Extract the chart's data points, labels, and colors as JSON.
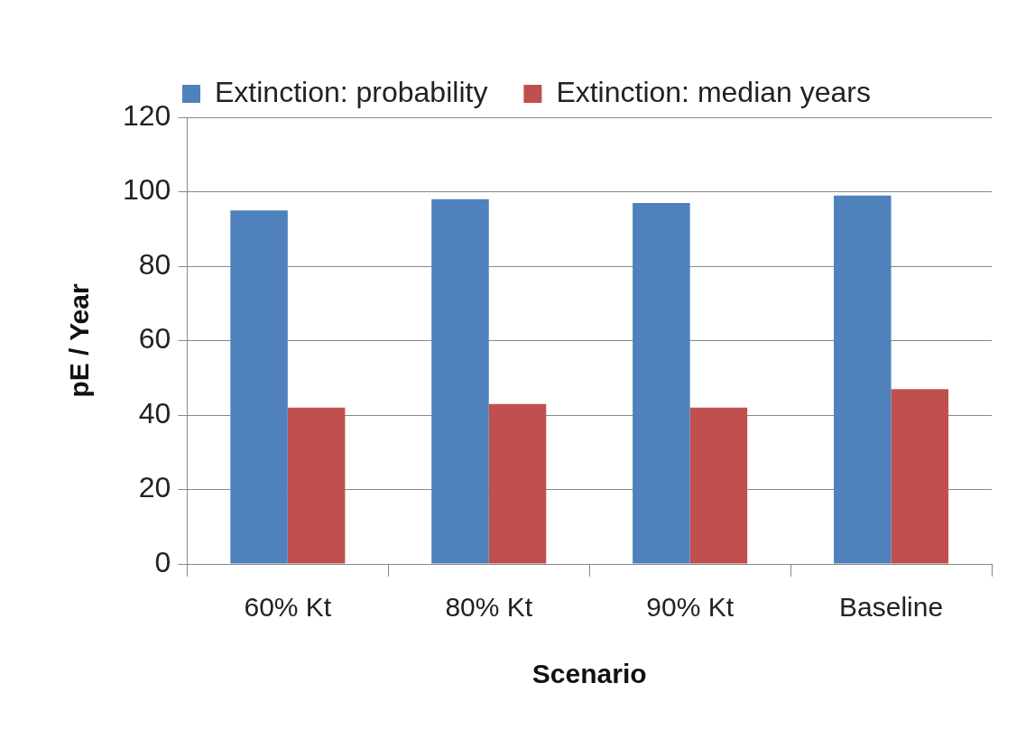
{
  "chart_data": {
    "type": "bar",
    "xlabel": "Scenario",
    "ylabel": "pE / Year",
    "categories": [
      "60% Kt",
      "80% Kt",
      "90% Kt",
      "Baseline"
    ],
    "series": [
      {
        "name": "Extinction: probability",
        "color": "#4f81bd",
        "values": [
          95,
          98,
          97,
          99
        ]
      },
      {
        "name": "Extinction: median years",
        "color": "#c0504d",
        "values": [
          42,
          43,
          42,
          47
        ]
      }
    ],
    "ylim": [
      0,
      120
    ],
    "yticks": [
      0,
      20,
      40,
      60,
      80,
      100,
      120
    ],
    "grid": "y",
    "legend": "top"
  }
}
